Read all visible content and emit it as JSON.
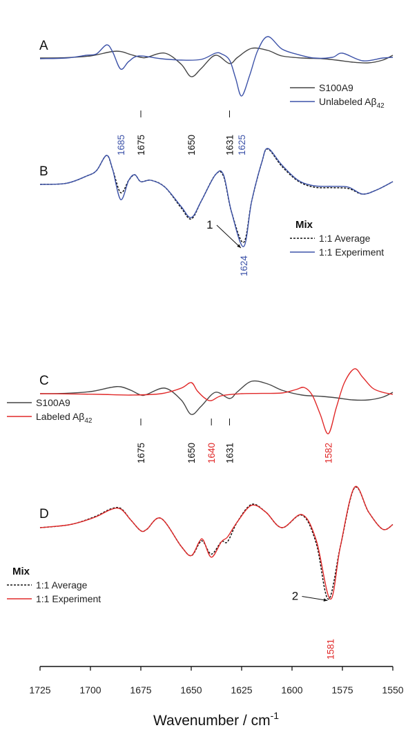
{
  "chart_data": {
    "type": "line",
    "xlabel": "Wavenumber / cm",
    "xlabel_superscript": "-1",
    "xlim": [
      1725,
      1550
    ],
    "xticks": [
      1725,
      1700,
      1675,
      1650,
      1625,
      1600,
      1575,
      1550
    ],
    "colors": {
      "gray": "#444444",
      "blue": "#3c52a8",
      "red": "#e02828",
      "black": "#111111"
    },
    "panels": [
      {
        "label": "A",
        "legend": {
          "title": "",
          "entries": [
            {
              "name": "S100A9",
              "color": "#444444",
              "dash": "solid"
            },
            {
              "name": "Unlabeled Aβ",
              "sub": "42",
              "color": "#3c52a8",
              "dash": "solid"
            }
          ]
        },
        "series": [
          {
            "name": "S100A9",
            "color": "#444444",
            "dash": "solid",
            "x": [
              1725,
              1712,
              1700,
              1690,
              1685,
              1680,
              1675,
              1672,
              1663,
              1655,
              1650,
              1645,
              1638,
              1631,
              1627,
              1620,
              1612,
              1605,
              1595,
              1585,
              1578,
              1570,
              1562,
              1555,
              1550
            ],
            "y": [
              0.05,
              0.08,
              0.2,
              0.5,
              0.52,
              0.3,
              0.1,
              0.1,
              0.4,
              -0.4,
              -1.3,
              -0.7,
              0.25,
              -0.35,
              0.1,
              0.75,
              0.6,
              0.2,
              0.05,
              0.0,
              -0.1,
              -0.25,
              -0.3,
              -0.1,
              0.25
            ]
          },
          {
            "name": "Unlabeled Aβ42",
            "color": "#3c52a8",
            "dash": "solid",
            "x": [
              1725,
              1712,
              1702,
              1697,
              1692,
              1689,
              1685,
              1681,
              1676,
              1665,
              1655,
              1645,
              1638,
              1635,
              1631,
              1628,
              1625,
              1621,
              1617,
              1612,
              1605,
              1597,
              1589,
              1580,
              1575,
              1565,
              1555,
              1550
            ],
            "y": [
              0.0,
              0.05,
              0.25,
              0.35,
              1.0,
              0.5,
              -0.75,
              -0.2,
              0.2,
              0.0,
              -0.1,
              -0.05,
              0.4,
              0.35,
              -0.1,
              -1.4,
              -2.7,
              -1.2,
              0.6,
              1.6,
              0.7,
              0.3,
              0.05,
              0.1,
              0.4,
              -0.15,
              0.05,
              0.1
            ]
          }
        ],
        "peak_labels": [
          {
            "text": "1685",
            "x": 1685,
            "color": "#3c52a8",
            "marker": false
          },
          {
            "text": "1675",
            "x": 1675,
            "color": "#111111",
            "marker": true
          },
          {
            "text": "1650",
            "x": 1650,
            "color": "#111111",
            "marker": false
          },
          {
            "text": "1631",
            "x": 1631,
            "color": "#111111",
            "marker": true
          },
          {
            "text": "1625",
            "x": 1625,
            "color": "#3c52a8",
            "marker": false
          }
        ]
      },
      {
        "label": "B",
        "legend": {
          "title": "Mix",
          "entries": [
            {
              "name": "1:1 Average",
              "color": "#111111",
              "dash": "dashed"
            },
            {
              "name": "1:1 Experiment",
              "color": "#3c52a8",
              "dash": "solid"
            }
          ]
        },
        "series": [
          {
            "name": "1:1 Average",
            "color": "#111111",
            "dash": "dashed",
            "x": [
              1725,
              1712,
              1702,
              1697,
              1692,
              1689,
              1685,
              1681,
              1678,
              1675,
              1670,
              1663,
              1655,
              1650,
              1645,
              1638,
              1634,
              1630,
              1624,
              1620,
              1615,
              1612,
              1605,
              1597,
              1589,
              1580,
              1572,
              1565,
              1558,
              1550
            ],
            "y": [
              0.0,
              0.04,
              0.3,
              0.5,
              1.05,
              0.55,
              -0.3,
              0.15,
              0.35,
              0.1,
              0.15,
              -0.1,
              -0.85,
              -1.25,
              -0.6,
              0.35,
              0.3,
              -1.0,
              -2.1,
              -0.6,
              0.8,
              1.28,
              0.65,
              0.12,
              -0.1,
              -0.12,
              -0.15,
              -0.35,
              -0.2,
              0.1
            ]
          },
          {
            "name": "1:1 Experiment",
            "color": "#3c52a8",
            "dash": "solid",
            "x": [
              1725,
              1712,
              1702,
              1697,
              1692,
              1689,
              1685,
              1681,
              1678,
              1675,
              1670,
              1663,
              1655,
              1650,
              1645,
              1638,
              1634,
              1630,
              1624,
              1620,
              1615,
              1612,
              1605,
              1597,
              1589,
              1580,
              1572,
              1565,
              1558,
              1550
            ],
            "y": [
              0.0,
              0.04,
              0.3,
              0.5,
              1.05,
              0.55,
              -0.55,
              0.15,
              0.35,
              0.1,
              0.15,
              -0.1,
              -0.8,
              -1.2,
              -0.6,
              0.35,
              0.35,
              -1.0,
              -2.25,
              -0.6,
              0.8,
              1.3,
              0.7,
              0.15,
              -0.05,
              -0.07,
              -0.1,
              -0.35,
              -0.2,
              0.1
            ]
          }
        ],
        "peak_labels": [
          {
            "text": "1624",
            "x": 1624,
            "color": "#3c52a8",
            "marker": false
          }
        ],
        "annotations": [
          {
            "text": "1",
            "x": 1624
          }
        ]
      },
      {
        "label": "C",
        "legend": {
          "title": "",
          "entries": [
            {
              "name": "S100A9",
              "color": "#444444",
              "dash": "solid"
            },
            {
              "name": "Labeled Aβ",
              "sub": "42",
              "color": "#e02828",
              "dash": "solid"
            }
          ]
        },
        "series": [
          {
            "name": "S100A9",
            "color": "#444444",
            "dash": "solid",
            "x": [
              1725,
              1712,
              1700,
              1690,
              1685,
              1680,
              1675,
              1672,
              1663,
              1655,
              1650,
              1645,
              1638,
              1631,
              1627,
              1620,
              1612,
              1605,
              1595,
              1585,
              1578,
              1570,
              1562,
              1555,
              1550
            ],
            "y": [
              0.0,
              0.03,
              0.15,
              0.45,
              0.5,
              0.25,
              -0.1,
              -0.05,
              0.4,
              -0.45,
              -1.5,
              -0.9,
              0.1,
              -0.35,
              0.15,
              0.9,
              0.7,
              0.25,
              -0.1,
              -0.2,
              -0.3,
              -0.45,
              -0.45,
              -0.25,
              0.1
            ]
          },
          {
            "name": "Labeled Aβ42",
            "color": "#e02828",
            "dash": "solid",
            "x": [
              1725,
              1710,
              1695,
              1680,
              1665,
              1655,
              1650,
              1647,
              1643,
              1640,
              1635,
              1625,
              1615,
              1605,
              1598,
              1594,
              1590,
              1586,
              1582,
              1578,
              1574,
              1569,
              1565,
              1560,
              1555,
              1550
            ],
            "y": [
              0.0,
              -0.02,
              -0.05,
              -0.1,
              0.0,
              0.4,
              0.8,
              0.2,
              -0.35,
              -0.5,
              -0.15,
              0.0,
              0.02,
              0.05,
              0.3,
              0.45,
              -0.1,
              -1.5,
              -2.9,
              -1.0,
              0.8,
              1.8,
              1.2,
              0.4,
              0.1,
              -0.05
            ]
          }
        ],
        "peak_labels": [
          {
            "text": "1675",
            "x": 1675,
            "color": "#111111",
            "marker": true
          },
          {
            "text": "1650",
            "x": 1650,
            "color": "#111111",
            "marker": false
          },
          {
            "text": "1640",
            "x": 1640,
            "color": "#e02828",
            "marker": true
          },
          {
            "text": "1631",
            "x": 1631,
            "color": "#111111",
            "marker": true
          },
          {
            "text": "1582",
            "x": 1582,
            "color": "#e02828",
            "marker": false
          }
        ]
      },
      {
        "label": "D",
        "legend": {
          "title": "Mix",
          "entries": [
            {
              "name": "1:1 Average",
              "color": "#111111",
              "dash": "dashed"
            },
            {
              "name": "1:1 Experiment",
              "color": "#e02828",
              "dash": "solid"
            }
          ]
        },
        "series": [
          {
            "name": "1:1 Average",
            "color": "#111111",
            "dash": "dashed",
            "x": [
              1725,
              1710,
              1698,
              1690,
              1685,
              1680,
              1675,
              1672,
              1665,
              1655,
              1650,
              1646,
              1644,
              1640,
              1635,
              1632,
              1627,
              1620,
              1613,
              1605,
              1595,
              1588,
              1582,
              1576,
              1569,
              1562,
              1555,
              1550
            ],
            "y": [
              0.0,
              0.1,
              0.35,
              0.6,
              0.62,
              0.25,
              -0.1,
              -0.05,
              0.3,
              -0.6,
              -0.9,
              -0.5,
              -0.45,
              -0.85,
              -0.45,
              -0.45,
              0.2,
              0.75,
              0.5,
              0.0,
              0.4,
              -0.5,
              -2.3,
              -0.6,
              1.28,
              0.5,
              -0.05,
              0.1
            ]
          },
          {
            "name": "1:1 Experiment",
            "color": "#e02828",
            "dash": "solid",
            "x": [
              1725,
              1710,
              1698,
              1690,
              1685,
              1680,
              1675,
              1672,
              1665,
              1655,
              1650,
              1646,
              1644,
              1640,
              1635,
              1632,
              1627,
              1620,
              1613,
              1605,
              1595,
              1588,
              1581,
              1576,
              1569,
              1562,
              1555,
              1550
            ],
            "y": [
              0.0,
              0.1,
              0.33,
              0.58,
              0.6,
              0.25,
              -0.1,
              -0.05,
              0.3,
              -0.6,
              -0.9,
              -0.45,
              -0.4,
              -0.95,
              -0.45,
              -0.3,
              0.2,
              0.72,
              0.5,
              0.0,
              0.42,
              -0.4,
              -2.3,
              -0.6,
              1.3,
              0.5,
              -0.05,
              0.1
            ]
          }
        ],
        "peak_labels": [
          {
            "text": "1581",
            "x": 1581,
            "color": "#e02828",
            "marker": false
          }
        ],
        "annotations": [
          {
            "text": "2",
            "x": 1581
          }
        ]
      }
    ]
  }
}
